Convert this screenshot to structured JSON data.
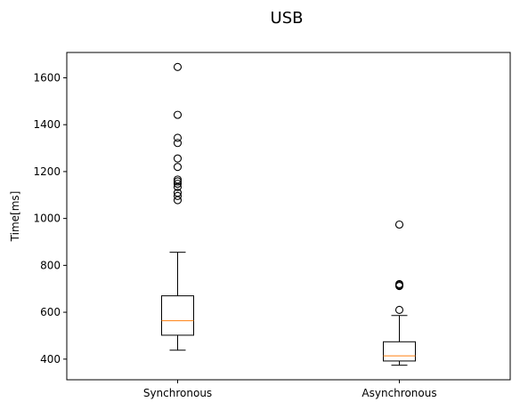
{
  "chart_data": {
    "type": "box",
    "title": "USB",
    "xlabel": "",
    "ylabel": "Time[ms]",
    "ylim": [
      312,
      1708
    ],
    "yticks": [
      400,
      600,
      800,
      1000,
      1200,
      1400,
      1600
    ],
    "categories": [
      "Synchronous",
      "Asynchronous"
    ],
    "boxes": [
      {
        "name": "Synchronous",
        "whisker_low": 438,
        "q1": 502,
        "median": 564,
        "q3": 670,
        "whisker_high": 856,
        "outliers": [
          1078,
          1096,
          1110,
          1134,
          1148,
          1158,
          1166,
          1220,
          1256,
          1322,
          1344,
          1442,
          1646
        ]
      },
      {
        "name": "Asynchronous",
        "whisker_low": 374,
        "q1": 392,
        "median": 414,
        "q3": 474,
        "whisker_high": 586,
        "outliers": [
          610,
          712,
          716,
          720,
          974
        ]
      }
    ],
    "colors": {
      "box": "#000000",
      "median": "#ff7f0e",
      "outlier": "#000000"
    },
    "grid": false
  }
}
